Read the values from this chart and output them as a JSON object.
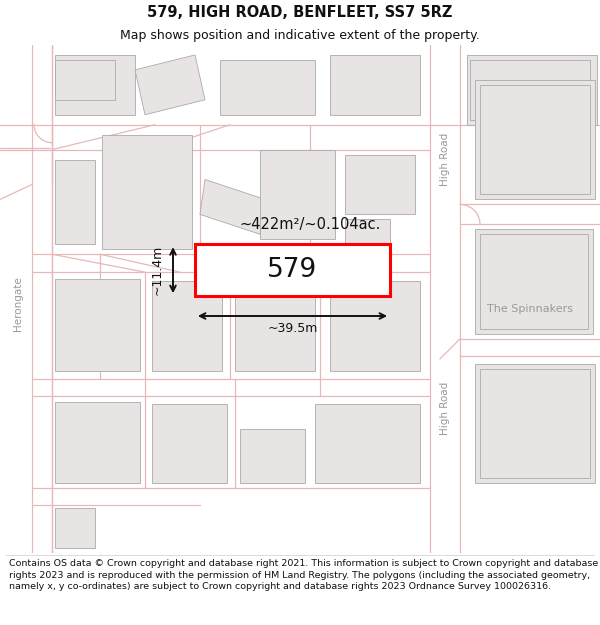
{
  "title_line1": "579, HIGH ROAD, BENFLEET, SS7 5RZ",
  "title_line2": "Map shows position and indicative extent of the property.",
  "footer_text": "Contains OS data © Crown copyright and database right 2021. This information is subject to Crown copyright and database rights 2023 and is reproduced with the permission of HM Land Registry. The polygons (including the associated geometry, namely x, y co-ordinates) are subject to Crown copyright and database rights 2023 Ordnance Survey 100026316.",
  "map_bg": "#ffffff",
  "road_color": "#e8b8b8",
  "building_fill": "#e8e4e4",
  "building_edge": "#aaaaaa",
  "highlight_color": "#ff0000",
  "highlight_fill": "#ffffff",
  "dim_color": "#111111",
  "label_579": "579",
  "area_label": "~422m²/~0.104ac.",
  "width_label": "~39.5m",
  "height_label": "~11.4m",
  "road_label_top": "High Road",
  "road_label_bottom": "High Road",
  "street_label_left": "Herongate",
  "area_label_right": "The Spinnakers",
  "title_fontsize": 10.5,
  "subtitle_fontsize": 9,
  "footer_fontsize": 6.8,
  "road_lw": 0.9,
  "building_lw": 0.6
}
